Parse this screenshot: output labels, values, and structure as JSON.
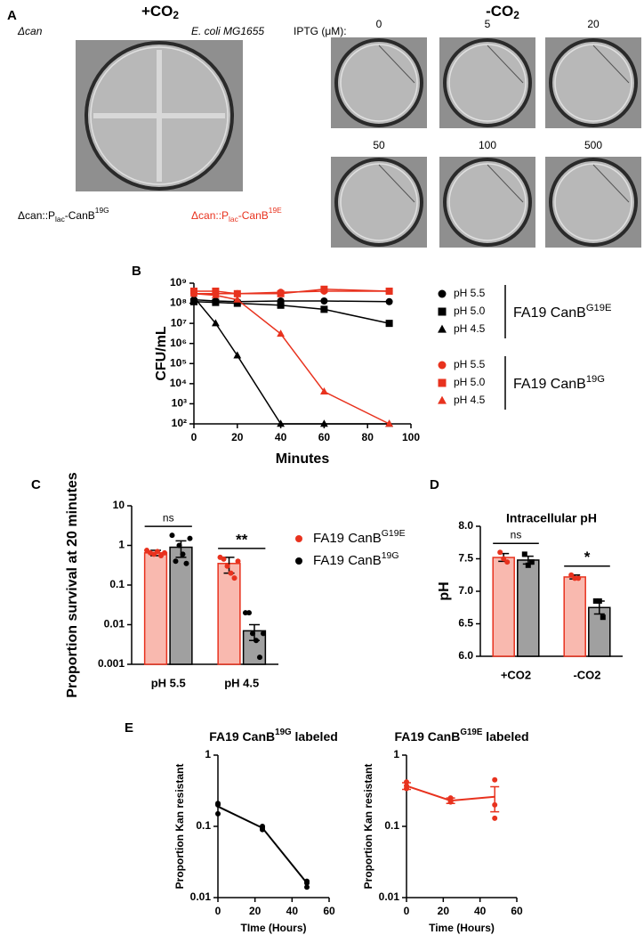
{
  "panel_labels": [
    "A",
    "B",
    "C",
    "D",
    "E"
  ],
  "panel_a": {
    "plus_co2": [
      "+CO",
      {
        "sub": "2"
      }
    ],
    "minus_co2": [
      "-CO",
      {
        "sub": "2"
      }
    ],
    "strain_top_left": "Δcan",
    "strain_top_right": "E. coli MG1655",
    "strain_bottom_left": [
      "Δcan::P",
      {
        "sub": "lac"
      },
      "-CanB",
      {
        "sup": "19G"
      }
    ],
    "strain_bottom_right": [
      "Δcan::P",
      {
        "sub": "lac"
      },
      "-CanB",
      {
        "sup": "19E"
      }
    ],
    "iptg_label": "IPTG (μM):",
    "iptg_values": [
      "0",
      "5",
      "20",
      "50",
      "100",
      "500"
    ]
  },
  "chart_data": [
    {
      "type": "line",
      "y_label": "CFU/mL",
      "x_label": "Minutes",
      "log_y": true,
      "ylim": [
        100,
        1000000000
      ],
      "yticks": [
        {
          "value": 100,
          "label": "10²"
        },
        {
          "value": 1000,
          "label": "10³"
        },
        {
          "value": 10000,
          "label": "10⁴"
        },
        {
          "value": 100000,
          "label": "10⁵"
        },
        {
          "value": 1000000,
          "label": "10⁶"
        },
        {
          "value": 10000000,
          "label": "10⁷"
        },
        {
          "value": 100000000,
          "label": "10⁸"
        },
        {
          "value": 1000000000,
          "label": "10⁹"
        }
      ],
      "xlim": [
        0,
        100
      ],
      "xticks": [
        0,
        20,
        40,
        60,
        80,
        100
      ],
      "x": [
        0,
        10,
        20,
        40,
        60,
        90
      ],
      "legend_groups": [
        [
          "FA19 CanB",
          {
            "sup": "G19E"
          }
        ],
        [
          "FA19 CanB",
          {
            "sup": "19G"
          }
        ]
      ],
      "series": [
        {
          "name": "pH 5.5",
          "group": 0,
          "marker": "circle",
          "color": "#000000",
          "values": [
            150000000,
            130000000,
            120000000,
            130000000,
            130000000,
            120000000
          ]
        },
        {
          "name": "pH 5.0",
          "group": 0,
          "marker": "square",
          "color": "#000000",
          "values": [
            120000000,
            110000000,
            100000000,
            80000000,
            50000000,
            10000000
          ]
        },
        {
          "name": "pH 4.5",
          "group": 0,
          "marker": "triangle",
          "color": "#000000",
          "values": [
            200000000,
            10000000,
            250000,
            100,
            100,
            100
          ]
        },
        {
          "name": "pH 5.5",
          "group": 1,
          "marker": "circle",
          "color": "#e8321e",
          "values": [
            300000000,
            300000000,
            300000000,
            350000000,
            400000000,
            400000000
          ]
        },
        {
          "name": "pH 5.0",
          "group": 1,
          "marker": "square",
          "color": "#e8321e",
          "values": [
            400000000,
            400000000,
            300000000,
            300000000,
            500000000,
            400000000
          ]
        },
        {
          "name": "pH 4.5",
          "group": 1,
          "marker": "triangle",
          "color": "#e8321e",
          "values": [
            300000000,
            250000000,
            150000000,
            3000000,
            4000,
            100
          ]
        }
      ]
    },
    {
      "type": "bar",
      "y_label": "Proportion survival at 20 minutes",
      "log_y": true,
      "ylim": [
        0.001,
        10
      ],
      "yticks": [
        0.001,
        0.01,
        0.1,
        1,
        10
      ],
      "categories": [
        "pH 5.5",
        "pH 4.5"
      ],
      "annotations": [
        "ns",
        "**"
      ],
      "legend": true,
      "series": [
        {
          "name": [
            "FA19 CanB",
            {
              "sup": "G19E"
            }
          ],
          "color": "#e8321e",
          "fill": "#f9b9af",
          "marker": "circle",
          "values": [
            0.65,
            0.35
          ],
          "errors": [
            0.1,
            0.15
          ],
          "points": [
            [
              0.75,
              0.65,
              0.6,
              0.7,
              0.55,
              0.65
            ],
            [
              0.5,
              0.45,
              0.3,
              0.2,
              0.15,
              0.4
            ]
          ]
        },
        {
          "name": [
            "FA19 CanB",
            {
              "sup": "19G"
            }
          ],
          "color": "#000000",
          "fill": "#a0a0a0",
          "marker": "circle",
          "values": [
            0.9,
            0.007
          ],
          "errors": [
            0.4,
            0.003
          ],
          "points": [
            [
              1.8,
              0.4,
              1,
              0.6,
              0.35,
              1.5
            ],
            [
              0.02,
              0.02,
              0.006,
              0.004,
              0.0015,
              0.006
            ]
          ]
        }
      ]
    },
    {
      "type": "bar",
      "title": "Intracellular pH",
      "y_label": "pH",
      "ylim": [
        6,
        8
      ],
      "yticks": [
        {
          "value": 6,
          "label": "6.0"
        },
        6.5,
        {
          "value": 7,
          "label": "7.0"
        },
        7.5,
        {
          "value": 8,
          "label": "8.0"
        }
      ],
      "categories": [
        "+CO2",
        "-CO2"
      ],
      "annotations": [
        "ns",
        "*"
      ],
      "series": [
        {
          "color": "#e8321e",
          "fill": "#f9b9af",
          "marker": "circle",
          "values": [
            7.52,
            7.22
          ],
          "errors": [
            0.06,
            0.03
          ],
          "points": [
            [
              7.6,
              7.5,
              7.45
            ],
            [
              7.25,
              7.2,
              7.2
            ]
          ]
        },
        {
          "color": "#000000",
          "fill": "#a0a0a0",
          "marker": "square",
          "values": [
            7.48,
            6.75
          ],
          "errors": [
            0.06,
            0.1
          ],
          "points": [
            [
              7.57,
              7.4,
              7.45
            ],
            [
              6.85,
              6.85,
              6.6
            ]
          ]
        }
      ]
    },
    {
      "type": "line",
      "title": [
        "FA19 CanB",
        {
          "sup": "19G"
        },
        " labeled"
      ],
      "y_label": "Proportion Kan resistant",
      "x_label": "TIme (Hours)",
      "log_y": true,
      "ylim": [
        0.01,
        1
      ],
      "yticks": [
        0.01,
        0.1,
        1
      ],
      "xlim": [
        0,
        60
      ],
      "xticks": [
        0,
        20,
        40,
        60
      ],
      "x": [
        0,
        24,
        48
      ],
      "series": [
        {
          "color": "#000000",
          "values": [
            0.19,
            0.095,
            0.016
          ],
          "points": [
            [
              0.21,
              0.2,
              0.15
            ],
            [
              0.1,
              0.095,
              0.09
            ],
            [
              0.017,
              0.016,
              0.014
            ]
          ]
        }
      ]
    },
    {
      "type": "line",
      "title": [
        "FA19 CanB",
        {
          "sup": "G19E"
        },
        " labeled"
      ],
      "y_label": "Proportion Kan resistant",
      "x_label": "Time (Hours)",
      "log_y": true,
      "ylim": [
        0.01,
        1
      ],
      "yticks": [
        0.01,
        0.1,
        1
      ],
      "xlim": [
        0,
        60
      ],
      "xticks": [
        0,
        20,
        40,
        60
      ],
      "x": [
        0,
        24,
        48
      ],
      "series": [
        {
          "color": "#e8321e",
          "values": [
            0.37,
            0.23,
            0.26
          ],
          "errors": [
            0.04,
            0.02,
            0.1
          ],
          "points": [
            [
              0.42,
              0.37,
              0.34
            ],
            [
              0.25,
              0.23,
              0.22
            ],
            [
              0.45,
              0.2,
              0.13
            ]
          ]
        }
      ]
    }
  ]
}
